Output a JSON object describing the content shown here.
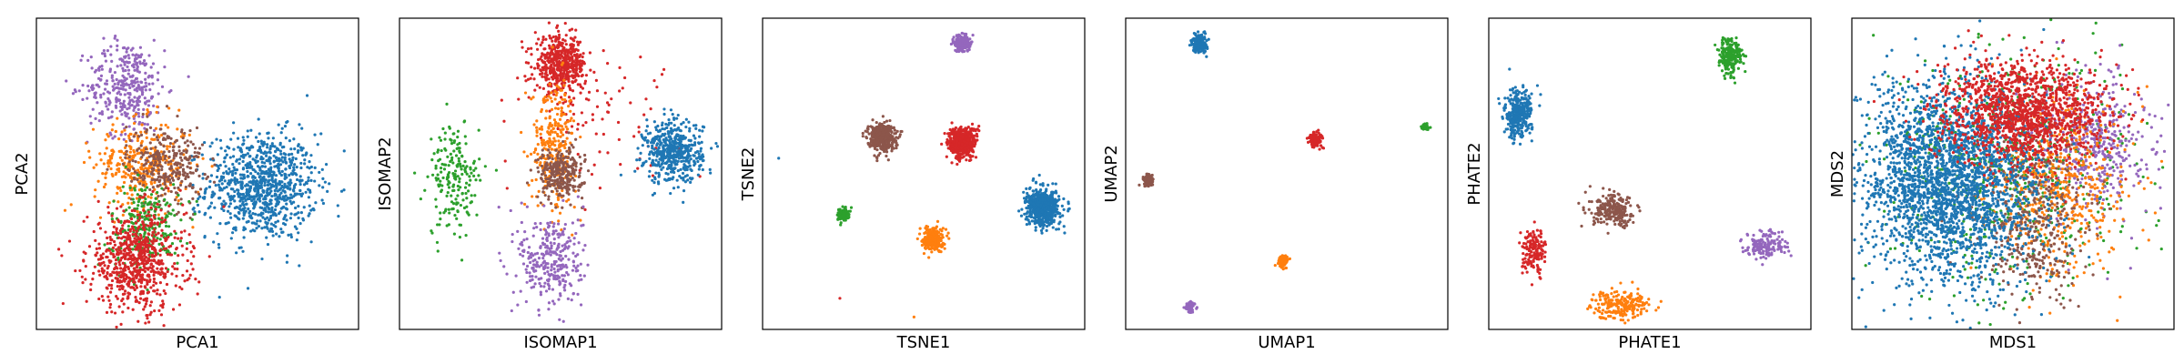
{
  "colors": {
    "blue": "#1f77b4",
    "orange": "#ff7f0e",
    "green": "#2ca02c",
    "red": "#d62728",
    "purple": "#9467bd",
    "brown": "#8c564b"
  },
  "chart_data": [
    {
      "type": "scatter",
      "title": "",
      "xlabel": "PCA1",
      "ylabel": "PCA2",
      "grid": false,
      "legend": "none",
      "xlim": [
        0,
        1
      ],
      "ylim": [
        0,
        1
      ],
      "ticks": "hidden",
      "clusters": [
        {
          "color": "blue",
          "x": 0.7,
          "y": 0.46,
          "sx": 0.085,
          "sy": 0.085,
          "n": 900
        },
        {
          "color": "purple",
          "x": 0.28,
          "y": 0.78,
          "sx": 0.06,
          "sy": 0.075,
          "n": 350
        },
        {
          "color": "orange",
          "x": 0.33,
          "y": 0.53,
          "sx": 0.075,
          "sy": 0.07,
          "n": 350
        },
        {
          "color": "brown",
          "x": 0.4,
          "y": 0.53,
          "sx": 0.06,
          "sy": 0.065,
          "n": 300
        },
        {
          "color": "green",
          "x": 0.34,
          "y": 0.33,
          "sx": 0.055,
          "sy": 0.07,
          "n": 250
        },
        {
          "color": "red",
          "x": 0.31,
          "y": 0.22,
          "sx": 0.075,
          "sy": 0.08,
          "n": 700
        }
      ]
    },
    {
      "type": "scatter",
      "title": "",
      "xlabel": "ISOMAP1",
      "ylabel": "ISOMAP2",
      "grid": false,
      "legend": "none",
      "xlim": [
        0,
        1
      ],
      "ylim": [
        0,
        1
      ],
      "ticks": "hidden",
      "clusters": [
        {
          "color": "red",
          "x": 0.5,
          "y": 0.85,
          "sx": 0.04,
          "sy": 0.045,
          "n": 500
        },
        {
          "color": "red",
          "x": 0.62,
          "y": 0.7,
          "sx": 0.12,
          "sy": 0.1,
          "n": 80
        },
        {
          "color": "blue",
          "x": 0.85,
          "y": 0.57,
          "sx": 0.045,
          "sy": 0.05,
          "n": 500
        },
        {
          "color": "green",
          "x": 0.17,
          "y": 0.48,
          "sx": 0.04,
          "sy": 0.09,
          "n": 200
        },
        {
          "color": "orange",
          "x": 0.48,
          "y": 0.6,
          "sx": 0.035,
          "sy": 0.1,
          "n": 280
        },
        {
          "color": "brown",
          "x": 0.5,
          "y": 0.5,
          "sx": 0.035,
          "sy": 0.04,
          "n": 280
        },
        {
          "color": "purple",
          "x": 0.47,
          "y": 0.22,
          "sx": 0.05,
          "sy": 0.08,
          "n": 300
        }
      ]
    },
    {
      "type": "scatter",
      "title": "",
      "xlabel": "TSNE1",
      "ylabel": "TSNE2",
      "grid": false,
      "legend": "none",
      "xlim": [
        0,
        1
      ],
      "ylim": [
        0,
        1
      ],
      "ticks": "hidden",
      "clusters": [
        {
          "color": "purple",
          "x": 0.62,
          "y": 0.92,
          "sx": 0.012,
          "sy": 0.014,
          "n": 180
        },
        {
          "color": "brown",
          "x": 0.37,
          "y": 0.62,
          "sx": 0.021,
          "sy": 0.022,
          "n": 400
        },
        {
          "color": "red",
          "x": 0.62,
          "y": 0.6,
          "sx": 0.022,
          "sy": 0.025,
          "n": 480
        },
        {
          "color": "blue",
          "x": 0.87,
          "y": 0.39,
          "sx": 0.025,
          "sy": 0.028,
          "n": 650
        },
        {
          "color": "green",
          "x": 0.25,
          "y": 0.37,
          "sx": 0.009,
          "sy": 0.011,
          "n": 100
        },
        {
          "color": "orange",
          "x": 0.53,
          "y": 0.29,
          "sx": 0.015,
          "sy": 0.018,
          "n": 260
        }
      ],
      "outliers": [
        {
          "color": "blue",
          "x": 0.05,
          "y": 0.55
        },
        {
          "color": "red",
          "x": 0.24,
          "y": 0.1
        },
        {
          "color": "orange",
          "x": 0.47,
          "y": 0.04
        }
      ]
    },
    {
      "type": "scatter",
      "title": "",
      "xlabel": "UMAP1",
      "ylabel": "UMAP2",
      "grid": false,
      "legend": "none",
      "xlim": [
        0,
        1
      ],
      "ylim": [
        0,
        1
      ],
      "ticks": "hidden",
      "clusters": [
        {
          "color": "blue",
          "x": 0.23,
          "y": 0.92,
          "sx": 0.011,
          "sy": 0.014,
          "n": 220
        },
        {
          "color": "red",
          "x": 0.59,
          "y": 0.61,
          "sx": 0.01,
          "sy": 0.011,
          "n": 160
        },
        {
          "color": "green",
          "x": 0.93,
          "y": 0.65,
          "sx": 0.006,
          "sy": 0.005,
          "n": 40
        },
        {
          "color": "brown",
          "x": 0.07,
          "y": 0.48,
          "sx": 0.009,
          "sy": 0.01,
          "n": 90
        },
        {
          "color": "orange",
          "x": 0.49,
          "y": 0.22,
          "sx": 0.008,
          "sy": 0.009,
          "n": 80
        },
        {
          "color": "purple",
          "x": 0.2,
          "y": 0.07,
          "sx": 0.007,
          "sy": 0.009,
          "n": 60
        }
      ]
    },
    {
      "type": "scatter",
      "title": "",
      "xlabel": "PHATE1",
      "ylabel": "PHATE2",
      "grid": false,
      "legend": "none",
      "xlim": [
        0,
        1
      ],
      "ylim": [
        0,
        1
      ],
      "ticks": "hidden",
      "clusters": [
        {
          "color": "green",
          "x": 0.75,
          "y": 0.88,
          "sx": 0.018,
          "sy": 0.03,
          "n": 220
        },
        {
          "color": "blue",
          "x": 0.09,
          "y": 0.69,
          "sx": 0.022,
          "sy": 0.038,
          "n": 320
        },
        {
          "color": "brown",
          "x": 0.39,
          "y": 0.38,
          "sx": 0.035,
          "sy": 0.025,
          "n": 240
        },
        {
          "color": "red",
          "x": 0.14,
          "y": 0.25,
          "sx": 0.018,
          "sy": 0.035,
          "n": 160
        },
        {
          "color": "orange",
          "x": 0.41,
          "y": 0.08,
          "sx": 0.045,
          "sy": 0.022,
          "n": 220
        },
        {
          "color": "purple",
          "x": 0.86,
          "y": 0.27,
          "sx": 0.035,
          "sy": 0.022,
          "n": 160
        }
      ]
    },
    {
      "type": "scatter",
      "title": "",
      "xlabel": "MDS1",
      "ylabel": "MDS2",
      "grid": false,
      "legend": "none",
      "xlim": [
        0,
        1
      ],
      "ylim": [
        0,
        1
      ],
      "ticks": "hidden",
      "clusters": [
        {
          "color": "green",
          "x": 0.5,
          "y": 0.52,
          "sx": 0.18,
          "sy": 0.18,
          "n": 650
        },
        {
          "color": "purple",
          "x": 0.76,
          "y": 0.6,
          "sx": 0.08,
          "sy": 0.11,
          "n": 420
        },
        {
          "color": "orange",
          "x": 0.65,
          "y": 0.45,
          "sx": 0.11,
          "sy": 0.14,
          "n": 500
        },
        {
          "color": "brown",
          "x": 0.56,
          "y": 0.34,
          "sx": 0.08,
          "sy": 0.12,
          "n": 400
        },
        {
          "color": "blue",
          "x": 0.3,
          "y": 0.47,
          "sx": 0.14,
          "sy": 0.16,
          "n": 2600
        },
        {
          "color": "red",
          "x": 0.53,
          "y": 0.7,
          "sx": 0.13,
          "sy": 0.08,
          "n": 1400
        }
      ]
    }
  ]
}
